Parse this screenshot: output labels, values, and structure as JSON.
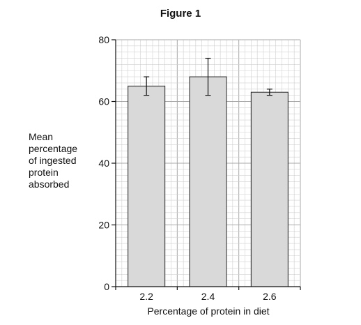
{
  "figure_title": "Figure 1",
  "chart_data": {
    "type": "bar",
    "title": "Figure 1",
    "categories": [
      "2.2",
      "2.4",
      "2.6"
    ],
    "values": [
      65,
      68,
      63
    ],
    "error_low": [
      62,
      62,
      62
    ],
    "error_high": [
      68,
      74,
      64
    ],
    "xlabel": "Percentage of protein in diet",
    "ylabel_lines": [
      "Mean",
      "percentage",
      "of ingested",
      "protein",
      "absorbed"
    ],
    "ylim": [
      0,
      80
    ],
    "yticks": [
      0,
      20,
      40,
      60,
      80
    ],
    "grid": true,
    "bar_color": "#d9d9d9",
    "grid_color_minor": "#d0d0d0",
    "grid_color_major": "#a8a8a8"
  }
}
